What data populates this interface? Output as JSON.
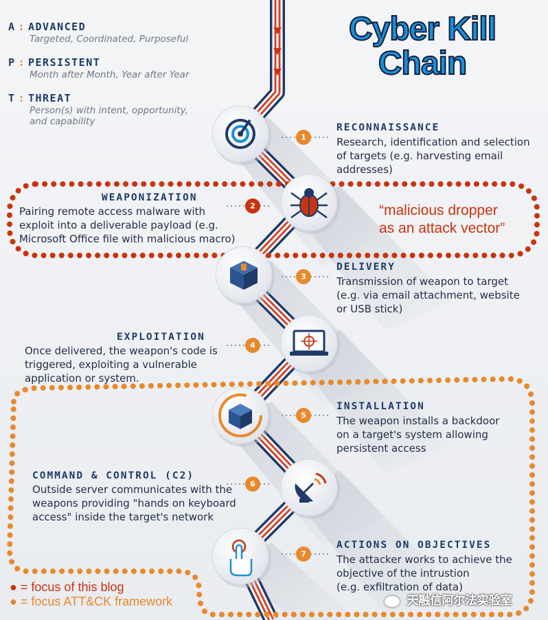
{
  "title": {
    "line1": "Cyber Kill",
    "line2": "Chain"
  },
  "apt": [
    {
      "letter": "A",
      "word": "ADVANCED",
      "desc": [
        "Targeted, Coordinated, Purposeful"
      ]
    },
    {
      "letter": "P",
      "word": "PERSISTENT",
      "desc": [
        "Month after Month, Year after Year"
      ]
    },
    {
      "letter": "T",
      "word": "THREAT",
      "desc": [
        "Person(s) with intent, opportunity,",
        "and capability"
      ]
    }
  ],
  "steps": [
    {
      "num": "1",
      "title": "RECONNAISSANCE",
      "desc": [
        "Research, identification and selection",
        "of targets (e.g. harvesting email",
        "addresses)"
      ],
      "icon": "radar-icon"
    },
    {
      "num": "2",
      "title": "WEAPONIZATION",
      "desc": [
        "Pairing remote access malware with",
        "exploit into a deliverable payload (e.g.",
        "Microsoft Office file with malicious macro)"
      ],
      "icon": "bug-icon"
    },
    {
      "num": "3",
      "title": "DELIVERY",
      "desc": [
        "Transmission of weapon to target",
        "(e.g. via email attachment, website",
        "or USB stick)"
      ],
      "icon": "package-icon"
    },
    {
      "num": "4",
      "title": "EXPLOITATION",
      "desc": [
        "Once delivered, the weapon's code is",
        "triggered, exploiting a vulnerable",
        "application or system."
      ],
      "icon": "laptop-target-icon"
    },
    {
      "num": "5",
      "title": "INSTALLATION",
      "desc": [
        "The weapon installs a backdoor",
        "on a target's system allowing",
        "persistent access"
      ],
      "icon": "cube-install-icon"
    },
    {
      "num": "6",
      "title": "COMMAND & CONTROL (C2)",
      "desc": [
        "Outside server communicates with the",
        "weapons providing \"hands on keyboard",
        "access\" inside the target's network"
      ],
      "icon": "satellite-dish-icon"
    },
    {
      "num": "7",
      "title": "ACTIONS ON OBJECTIVES",
      "desc": [
        "The attacker works to achieve the",
        "objective of the intrustion",
        "(e.g. exfiltration of data)"
      ],
      "icon": "hand-touch-icon"
    }
  ],
  "annotation": {
    "lines": [
      "“malicious dropper",
      "as an attack vector”"
    ]
  },
  "legend": [
    {
      "bullet": "●",
      "text": "= focus of this blog",
      "color": "#c9340f"
    },
    {
      "bullet": "●",
      "text": "= focus ATT&CK framework",
      "color": "#e8892c"
    }
  ],
  "watermark": "天融信阿尔法实验室",
  "colors": {
    "navy": "#1e3a68",
    "orange": "#e8892c",
    "red": "#c9340f",
    "blue": "#1b8fd6"
  }
}
